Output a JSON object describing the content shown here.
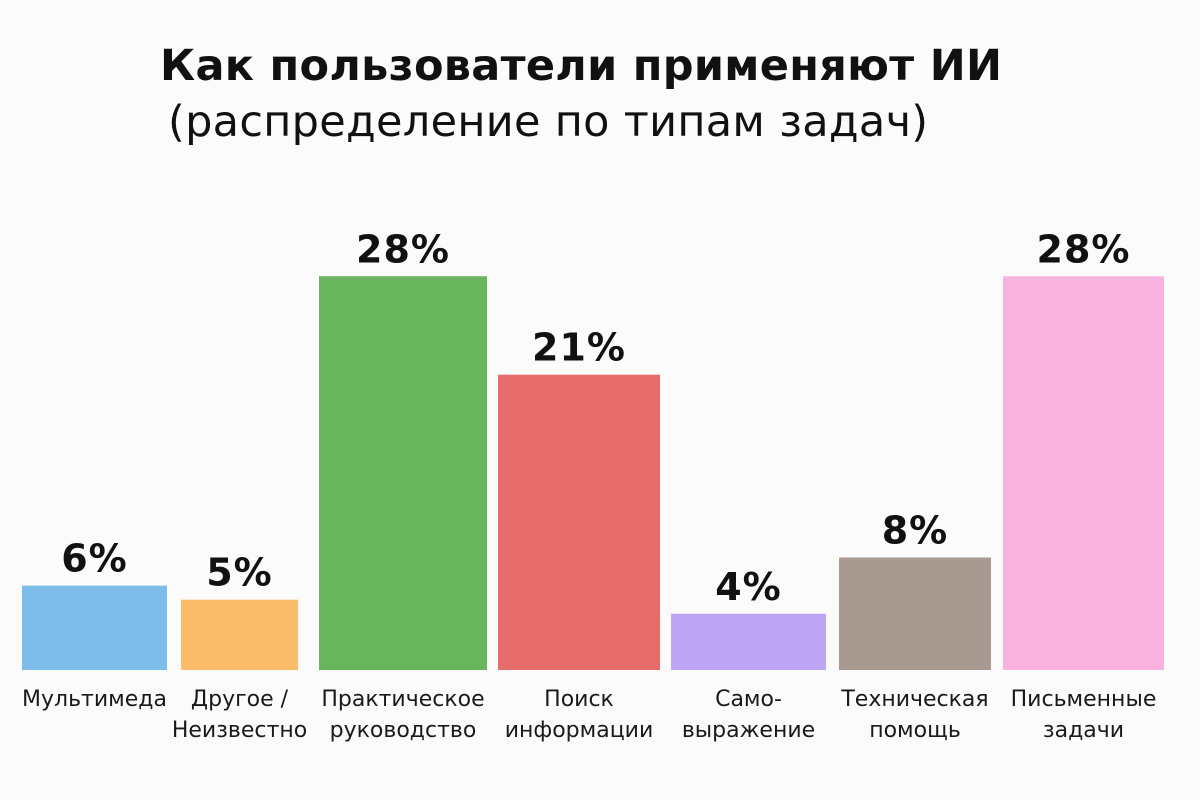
{
  "chart_data": {
    "type": "bar",
    "title": "Как пользователи применяют ИИ",
    "subtitle": "(распределение по типам задач)",
    "xlabel": "",
    "ylabel": "",
    "ylim": [
      0,
      32
    ],
    "grid": false,
    "legend": "none",
    "categories": [
      [
        "Мультимеда"
      ],
      [
        "Другое /",
        "Неизвестно"
      ],
      [
        "Практическое",
        "руководство"
      ],
      [
        "Поиск",
        "информации"
      ],
      [
        "Само-",
        "выражение"
      ],
      [
        "Техническая",
        "помощь"
      ],
      [
        "Письменные",
        "задачи"
      ]
    ],
    "values": [
      6,
      5,
      28,
      21,
      4,
      8,
      28
    ],
    "value_labels": [
      "6%",
      "5%",
      "28%",
      "21%",
      "4%",
      "8%",
      "28%"
    ],
    "colors": [
      "#7cbde9",
      "#fbbd6c",
      "#68b55e",
      "#e66c6c",
      "#bda4f5",
      "#a99a91",
      "#f7b3de"
    ]
  }
}
